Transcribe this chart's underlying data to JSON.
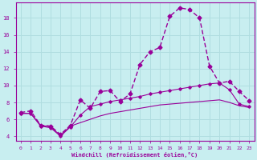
{
  "xlabel": "Windchill (Refroidissement éolien,°C)",
  "background_color": "#c8eef0",
  "grid_color": "#b0dde0",
  "line_color": "#990099",
  "x_labels": [
    "0",
    "1",
    "2",
    "3",
    "4",
    "5",
    "6",
    "7",
    "8",
    "9",
    "10",
    "11",
    "12",
    "13",
    "14",
    "15",
    "16",
    "17",
    "18",
    "19",
    "20",
    "21",
    "22",
    "23"
  ],
  "ylim": [
    3.5,
    19.8
  ],
  "xlim": [
    -0.5,
    23.5
  ],
  "yticks": [
    4,
    6,
    8,
    10,
    12,
    14,
    16,
    18
  ],
  "line1_x": [
    0,
    1,
    2,
    3,
    4,
    5,
    6,
    7,
    8,
    9,
    10,
    11,
    12,
    13,
    14,
    15,
    16,
    17,
    18,
    19,
    20,
    21,
    22,
    23
  ],
  "line1_y": [
    6.8,
    7.0,
    5.3,
    5.2,
    4.2,
    5.3,
    8.3,
    7.3,
    9.3,
    9.4,
    8.1,
    9.0,
    12.5,
    14.0,
    14.5,
    18.2,
    19.2,
    19.0,
    18.0,
    12.3,
    10.3,
    10.5,
    9.3,
    8.2
  ],
  "line2_x": [
    0,
    1,
    2,
    3,
    4,
    5,
    6,
    7,
    8,
    9,
    10,
    11,
    12,
    13,
    14,
    15,
    16,
    17,
    18,
    19,
    20,
    21,
    22,
    23
  ],
  "line2_y": [
    6.7,
    6.7,
    5.2,
    5.0,
    4.0,
    5.1,
    6.5,
    7.5,
    7.8,
    8.1,
    8.3,
    8.5,
    8.7,
    9.0,
    9.2,
    9.4,
    9.6,
    9.8,
    10.0,
    10.2,
    10.3,
    9.5,
    7.8,
    7.5
  ],
  "line3_x": [
    0,
    1,
    2,
    3,
    4,
    5,
    6,
    7,
    8,
    9,
    10,
    11,
    12,
    13,
    14,
    15,
    16,
    17,
    18,
    19,
    20,
    21,
    22,
    23
  ],
  "line3_y": [
    6.7,
    6.7,
    5.3,
    5.1,
    4.1,
    5.2,
    5.6,
    6.0,
    6.4,
    6.7,
    6.9,
    7.1,
    7.3,
    7.5,
    7.7,
    7.8,
    7.9,
    8.0,
    8.1,
    8.2,
    8.3,
    8.0,
    7.6,
    7.4
  ]
}
